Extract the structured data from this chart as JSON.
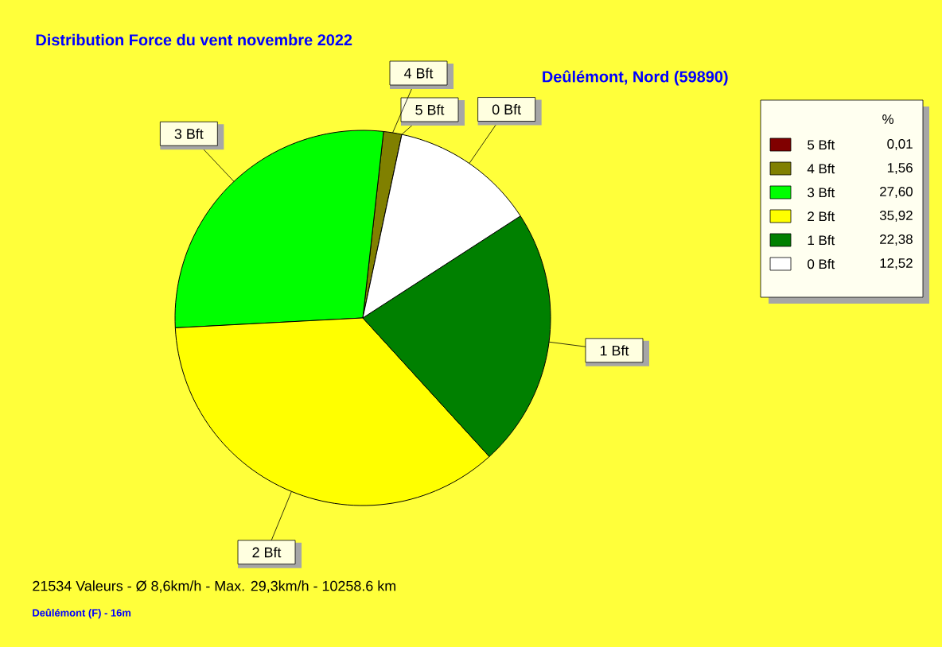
{
  "chart_data": {
    "type": "pie",
    "title": "Distribution Force du vent  novembre 2022",
    "subtitle": "Deûlémont, Nord (59890)",
    "categories": [
      "5 Bft",
      "4 Bft",
      "3 Bft",
      "2 Bft",
      "1 Bft",
      "0 Bft"
    ],
    "values": [
      0.01,
      1.56,
      27.6,
      35.92,
      22.38,
      12.52
    ],
    "colors": [
      "#800000",
      "#808000",
      "#00ff00",
      "#ffff00",
      "#008000",
      "#ffffff"
    ],
    "value_labels": [
      "0,01",
      "1,56",
      "27,60",
      "35,92",
      "22,38",
      "12,52"
    ],
    "legend": "right",
    "legend_title": "%",
    "annotations": [
      "21534 Valeurs   -   Ø 8,6km/h  -  Max. 29,3km/h   -   10258.6 km",
      "Deûlémont (F) - 16m"
    ]
  }
}
